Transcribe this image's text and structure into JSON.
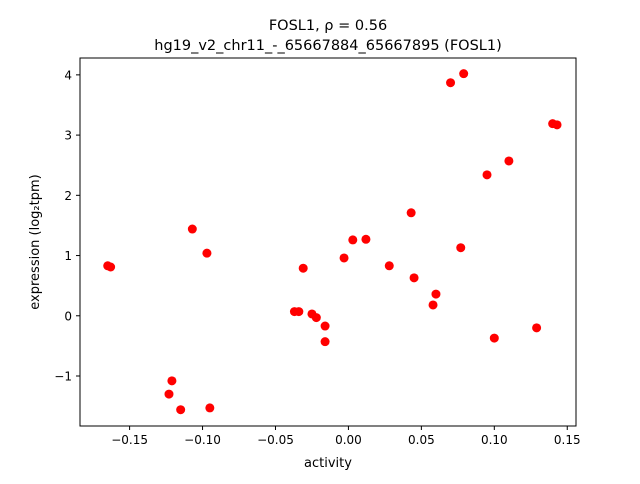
{
  "chart_data": {
    "type": "scatter",
    "title_line1": "FOSL1, ρ = 0.56",
    "title_line2": "hg19_v2_chr11_-_65667884_65667895 (FOSL1)",
    "xlabel": "activity",
    "ylabel": "expression (log₂tpm)",
    "xlim": [
      -0.184,
      0.156
    ],
    "ylim": [
      -1.83,
      4.28
    ],
    "xticks": [
      -0.15,
      -0.1,
      -0.05,
      0.0,
      0.05,
      0.1,
      0.15
    ],
    "xtick_labels": [
      "−0.15",
      "−0.10",
      "−0.05",
      "0.00",
      "0.05",
      "0.10",
      "0.15"
    ],
    "yticks": [
      -1,
      0,
      1,
      2,
      3,
      4
    ],
    "ytick_labels": [
      "−1",
      "0",
      "1",
      "2",
      "3",
      "4"
    ],
    "grid": false,
    "marker_color": "#ff0000",
    "points": [
      [
        -0.165,
        0.83
      ],
      [
        -0.163,
        0.81
      ],
      [
        -0.107,
        1.44
      ],
      [
        -0.097,
        1.04
      ],
      [
        -0.121,
        -1.08
      ],
      [
        -0.123,
        -1.3
      ],
      [
        -0.115,
        -1.56
      ],
      [
        -0.095,
        -1.53
      ],
      [
        -0.031,
        0.79
      ],
      [
        -0.037,
        0.07
      ],
      [
        -0.034,
        0.07
      ],
      [
        -0.025,
        0.03
      ],
      [
        -0.022,
        -0.03
      ],
      [
        -0.016,
        -0.17
      ],
      [
        -0.016,
        -0.43
      ],
      [
        -0.003,
        0.96
      ],
      [
        0.003,
        1.26
      ],
      [
        0.012,
        1.27
      ],
      [
        0.028,
        0.83
      ],
      [
        0.043,
        1.71
      ],
      [
        0.045,
        0.63
      ],
      [
        0.06,
        0.36
      ],
      [
        0.058,
        0.18
      ],
      [
        0.07,
        3.87
      ],
      [
        0.079,
        4.02
      ],
      [
        0.077,
        1.13
      ],
      [
        0.095,
        2.34
      ],
      [
        0.1,
        -0.37
      ],
      [
        0.11,
        2.57
      ],
      [
        0.129,
        -0.2
      ],
      [
        0.14,
        3.19
      ],
      [
        0.143,
        3.17
      ]
    ]
  }
}
